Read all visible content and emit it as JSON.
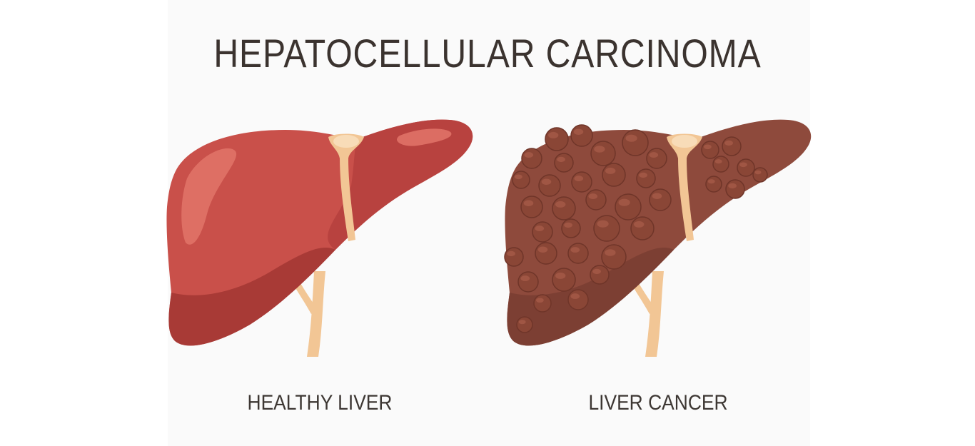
{
  "title": "HEPATOCELLULAR CARCINOMA",
  "labels": {
    "healthy": "HEALTHY LIVER",
    "cancer": "LIVER CANCER"
  },
  "colors": {
    "title_text": "#3b332f",
    "healthy_liver": "#c9504a",
    "cancer_liver": "#8e4a3c",
    "ligament": "#f2c695",
    "tumor": "#8a4636"
  }
}
